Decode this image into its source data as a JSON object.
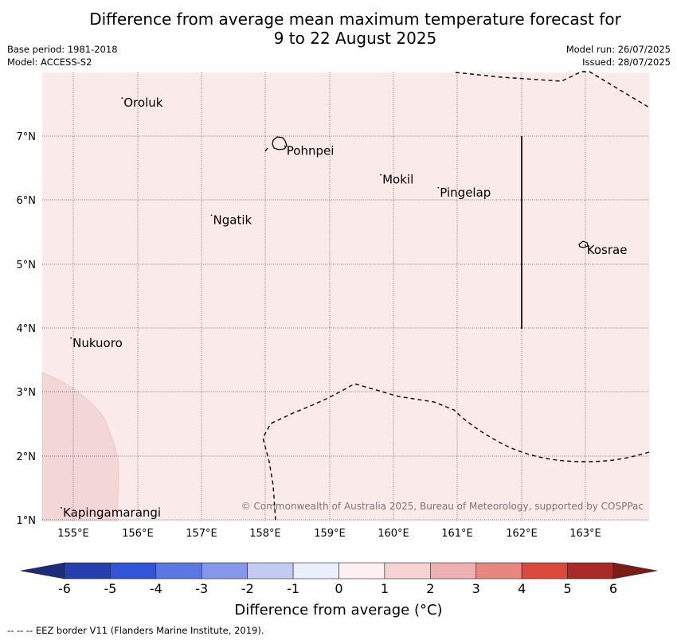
{
  "title_line1": "Difference from average mean maximum temperature forecast for",
  "title_line2": "9 to 22 August 2025",
  "meta_left": [
    "Base period: 1981-2018",
    "Model: ACCESS-S2"
  ],
  "meta_right": [
    "Model run: 26/07/2025",
    "Issued: 28/07/2025"
  ],
  "map": {
    "lon_ticks": [
      "155°E",
      "156°E",
      "157°E",
      "158°E",
      "159°E",
      "160°E",
      "161°E",
      "162°E",
      "163°E"
    ],
    "lat_ticks": [
      "7°N",
      "6°N",
      "5°N",
      "4°N",
      "3°N",
      "2°N",
      "1°N"
    ],
    "places": [
      {
        "name": "Oroluk",
        "lon": 155.75,
        "lat": 7.6
      },
      {
        "name": "Pohnpei",
        "lon": 158.3,
        "lat": 6.85
      },
      {
        "name": "Mokil",
        "lon": 159.8,
        "lat": 6.4
      },
      {
        "name": "Pingelap",
        "lon": 160.7,
        "lat": 6.2
      },
      {
        "name": "Ngatik",
        "lon": 157.15,
        "lat": 5.77
      },
      {
        "name": "Kosrae",
        "lon": 163.0,
        "lat": 5.3
      },
      {
        "name": "Nukuoro",
        "lon": 154.95,
        "lat": 3.85
      },
      {
        "name": "Kapingamarangi",
        "lon": 154.8,
        "lat": 1.2
      }
    ],
    "copyright": "© Commonwealth of Australia 2025, Bureau of Meteorology, supported by COSPPac",
    "background_color": "#fbeaea",
    "warm_patch_color": "#f3d6d6"
  },
  "colorbar": {
    "ticks": [
      "-6",
      "-5",
      "-4",
      "-3",
      "-2",
      "-1",
      "0",
      "1",
      "2",
      "3",
      "4",
      "5",
      "6"
    ],
    "colors": [
      "#253fae",
      "#3454d8",
      "#5b77e2",
      "#8597ea",
      "#c4cbf2",
      "#ebeefb",
      "#fdf0f0",
      "#f5d3d3",
      "#eeb0b0",
      "#e8877f",
      "#d94a3c",
      "#aa2a24"
    ],
    "under_color": "#1a2c7a",
    "over_color": "#7a1d19",
    "label": "Difference from average (°C)"
  },
  "footnote": "-- -- -- EEZ border V11 (Flanders Marine Institute, 2019)."
}
